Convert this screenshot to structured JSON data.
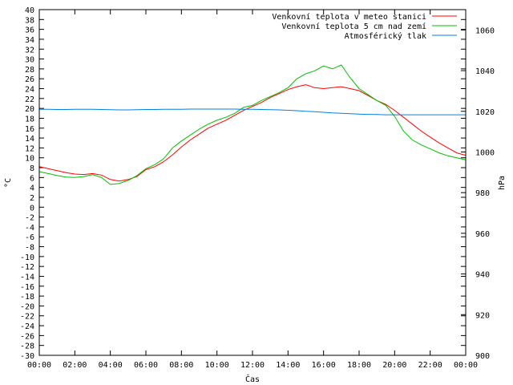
{
  "chart_data": {
    "type": "line",
    "xlabel": "Čas",
    "ylabel_left": "°C",
    "ylabel_right": "hPa",
    "xlim": [
      0,
      24
    ],
    "ylim_left": [
      -30,
      40
    ],
    "ylim_right": [
      900,
      1070
    ],
    "grid": false,
    "legend_placement": "top-right",
    "x_ticks": [
      "00:00",
      "02:00",
      "04:00",
      "06:00",
      "08:00",
      "10:00",
      "12:00",
      "14:00",
      "16:00",
      "18:00",
      "20:00",
      "22:00",
      "00:00"
    ],
    "y_left_ticks": [
      "-30",
      "-28",
      "-26",
      "-24",
      "-22",
      "-20",
      "-18",
      "-16",
      "-14",
      "-12",
      "-10",
      "-8",
      "-6",
      "-4",
      "-2",
      "0",
      "2",
      "4",
      "6",
      "8",
      "10",
      "12",
      "14",
      "16",
      "18",
      "20",
      "22",
      "24",
      "26",
      "28",
      "30",
      "32",
      "34",
      "36",
      "38",
      "40"
    ],
    "y_right_ticks": [
      "900",
      "920",
      "940",
      "960",
      "980",
      "1000",
      "1020",
      "1040",
      "1060"
    ],
    "x": [
      0,
      0.5,
      1,
      1.5,
      2,
      2.5,
      3,
      3.5,
      4,
      4.5,
      5,
      5.5,
      6,
      6.5,
      7,
      7.5,
      8,
      8.5,
      9,
      9.5,
      10,
      10.5,
      11,
      11.5,
      12,
      12.5,
      13,
      13.5,
      14,
      14.5,
      15,
      15.5,
      16,
      16.5,
      17,
      17.5,
      18,
      18.5,
      19,
      19.5,
      20,
      20.5,
      21,
      21.5,
      22,
      22.5,
      23,
      23.5,
      24
    ],
    "series": [
      {
        "name": "Venkovní teplota v meteo stanici",
        "axis": "left",
        "color": "#ff0000",
        "values": [
          8.2,
          7.8,
          7.4,
          7.0,
          6.7,
          6.6,
          6.8,
          6.5,
          5.6,
          5.3,
          5.6,
          6.2,
          7.6,
          8.2,
          9.2,
          10.6,
          12.2,
          13.6,
          14.8,
          16.0,
          16.8,
          17.6,
          18.6,
          19.6,
          20.4,
          21.2,
          22.2,
          23.0,
          23.8,
          24.4,
          24.8,
          24.2,
          24.0,
          24.2,
          24.4,
          24.0,
          23.6,
          22.6,
          21.6,
          20.8,
          19.6,
          18.2,
          16.8,
          15.4,
          14.2,
          13.0,
          12.0,
          11.0,
          10.5
        ]
      },
      {
        "name": "Venkovní teplota 5 cm nad zemí",
        "axis": "left",
        "color": "#00c000",
        "values": [
          7.2,
          6.8,
          6.4,
          6.1,
          6.0,
          6.2,
          6.6,
          6.0,
          4.6,
          4.8,
          5.4,
          6.4,
          7.8,
          8.6,
          9.8,
          12.0,
          13.4,
          14.6,
          15.8,
          16.8,
          17.6,
          18.2,
          19.0,
          20.2,
          20.6,
          21.6,
          22.4,
          23.2,
          24.2,
          26.0,
          27.0,
          27.6,
          28.6,
          28.0,
          28.8,
          26.2,
          24.0,
          22.8,
          21.6,
          20.6,
          18.4,
          15.4,
          13.6,
          12.6,
          11.8,
          11.0,
          10.4,
          10.0,
          9.6
        ]
      },
      {
        "name": "Atmosférický tlak",
        "axis": "right",
        "color": "#0080e0",
        "values": [
          1021.0,
          1021.0,
          1020.9,
          1020.9,
          1021.0,
          1021.0,
          1021.0,
          1020.9,
          1020.8,
          1020.7,
          1020.7,
          1020.8,
          1020.9,
          1020.9,
          1021.0,
          1021.0,
          1021.0,
          1021.1,
          1021.1,
          1021.1,
          1021.1,
          1021.1,
          1021.1,
          1021.0,
          1021.0,
          1020.9,
          1020.8,
          1020.7,
          1020.5,
          1020.3,
          1020.0,
          1019.8,
          1019.5,
          1019.2,
          1019.0,
          1018.8,
          1018.6,
          1018.5,
          1018.4,
          1018.3,
          1018.3,
          1018.3,
          1018.3,
          1018.3,
          1018.3,
          1018.3,
          1018.3,
          1018.3,
          1018.3
        ]
      }
    ]
  }
}
